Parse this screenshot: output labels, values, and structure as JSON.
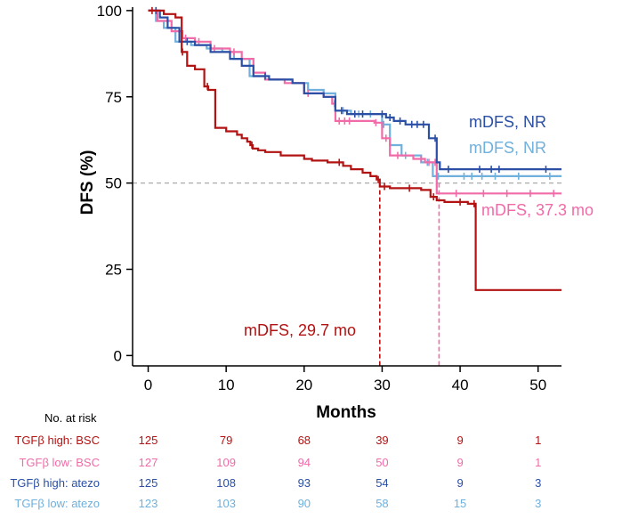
{
  "chart_data": {
    "type": "line",
    "subtype": "kaplan-meier step curves",
    "xlabel": "Months",
    "ylabel": "DFS (%)",
    "xlim": [
      -2,
      53
    ],
    "ylim": [
      -3,
      101
    ],
    "xticks": [
      0,
      10,
      20,
      30,
      40,
      50
    ],
    "yticks": [
      0,
      25,
      50,
      75,
      100
    ],
    "grid": false,
    "reference_line": {
      "y": 50,
      "style": "dashed",
      "color": "#aaaaaa"
    },
    "series": [
      {
        "name": "TGFβ high: BSC",
        "color": "#b31212",
        "x": [
          0,
          2,
          3.5,
          4.3,
          5.0,
          6.0,
          7.2,
          7.7,
          8.6,
          10.0,
          11.4,
          12.0,
          12.7,
          13.1,
          13.4,
          14.1,
          15.0,
          17.0,
          20.0,
          21.0,
          23.0,
          25.0,
          26.0,
          27.5,
          28.5,
          29.3,
          29.7,
          31.0,
          35.0,
          36.2,
          37.0,
          38.0,
          41.0,
          42.0,
          53
        ],
        "y": [
          100,
          99,
          98,
          88,
          84,
          83,
          78,
          77,
          66,
          65,
          64,
          63,
          62,
          61,
          60,
          59.5,
          59,
          58,
          57,
          56.5,
          56,
          55,
          54,
          53,
          52,
          51,
          49,
          48.5,
          48,
          46,
          45,
          44.5,
          44,
          19,
          19
        ],
        "censor_x": [
          0.5,
          4.4,
          7.6,
          13.3,
          24.5,
          29.5,
          30.3,
          33.5,
          36.6,
          40.0,
          41.8
        ]
      },
      {
        "name": "TGFβ low: BSC",
        "color": "#f06ba8",
        "x": [
          0,
          1.2,
          3.0,
          4.4,
          6.0,
          8.0,
          10.5,
          12.0,
          13.5,
          15.0,
          17.5,
          20.0,
          22.5,
          23.6,
          24.0,
          29.0,
          30.0,
          31.0,
          34.0,
          35.5,
          37.0,
          53
        ],
        "y": [
          100,
          97,
          94,
          92,
          91,
          89,
          88,
          86,
          82,
          80,
          79,
          76,
          75,
          73,
          68,
          67.5,
          63,
          58,
          57,
          56,
          47,
          47
        ],
        "censor_x": [
          4.8,
          6.5,
          8.5,
          11.0,
          20.5,
          23.9,
          24.5,
          25.2,
          25.8,
          29.2,
          30.5,
          32.0,
          35.0,
          36.0,
          36.8,
          39.5,
          43.0,
          46.0,
          49.0,
          52.0
        ]
      },
      {
        "name": "TGFβ high: atezo",
        "color": "#2a4fa5",
        "x": [
          0,
          1.5,
          2.5,
          4.0,
          6.0,
          8.0,
          10.5,
          12.0,
          13.5,
          15.5,
          18.5,
          20.0,
          22.5,
          24.0,
          25.5,
          30.5,
          31.5,
          33.0,
          36.0,
          37.0,
          37.4,
          53
        ],
        "y": [
          100,
          98,
          95,
          91,
          90,
          88,
          86,
          84,
          81,
          80,
          79,
          76,
          75,
          71,
          70,
          69,
          68,
          67,
          63,
          56,
          54,
          54
        ],
        "censor_x": [
          1.0,
          5.0,
          15.0,
          24.8,
          26.5,
          27.5,
          30.0,
          31.0,
          32.3,
          33.8,
          34.5,
          35.3,
          36.8,
          38.5,
          42.5,
          44.0,
          45.0,
          51.0
        ]
      },
      {
        "name": "TGFβ low: atezo",
        "color": "#6fb0dc",
        "x": [
          0,
          1.0,
          2.0,
          3.5,
          5.5,
          7.5,
          9.5,
          11.0,
          13.0,
          15.0,
          17.0,
          18.5,
          20.5,
          22.5,
          24.0,
          26.0,
          30.0,
          31.0,
          32.5,
          35.0,
          36.5,
          53
        ],
        "y": [
          100,
          97,
          95,
          91,
          90,
          89,
          88,
          86,
          81,
          80,
          80,
          79,
          77,
          76,
          71,
          70,
          67,
          61,
          58,
          56,
          52,
          52
        ],
        "censor_x": [
          25.0,
          27.0,
          28.5,
          30.2,
          33.0,
          35.8,
          37.2,
          40.5,
          41.5,
          42.8,
          44.5,
          47.5,
          51.5
        ]
      }
    ],
    "median_lines": [
      {
        "x": 29.7,
        "color": "#b31212"
      },
      {
        "x": 37.3,
        "color": "#f06ba8"
      }
    ],
    "annotations": [
      {
        "text": "mDFS, NR",
        "color": "#2a4fa5"
      },
      {
        "text": "mDFS, NR",
        "color": "#6fb0dc"
      },
      {
        "text": "mDFS, 37.3 mo",
        "color": "#f06ba8"
      },
      {
        "text": "mDFS, 29.7 mo",
        "color": "#b31212"
      }
    ],
    "risk_table": {
      "header": "No. at risk",
      "rows": [
        {
          "label": "TGFβ high: BSC",
          "color": "#b31212",
          "values": [
            "125",
            "79",
            "68",
            "39",
            "9",
            "1"
          ]
        },
        {
          "label": "TGFβ low: BSC",
          "color": "#f06ba8",
          "values": [
            "127",
            "109",
            "94",
            "50",
            "9",
            "1"
          ]
        },
        {
          "label": "TGFβ high: atezo",
          "color": "#2a4fa5",
          "values": [
            "125",
            "108",
            "93",
            "54",
            "9",
            "3"
          ]
        },
        {
          "label": "TGFβ low: atezo",
          "color": "#6fb0dc",
          "values": [
            "123",
            "103",
            "90",
            "58",
            "15",
            "3"
          ]
        }
      ]
    }
  }
}
